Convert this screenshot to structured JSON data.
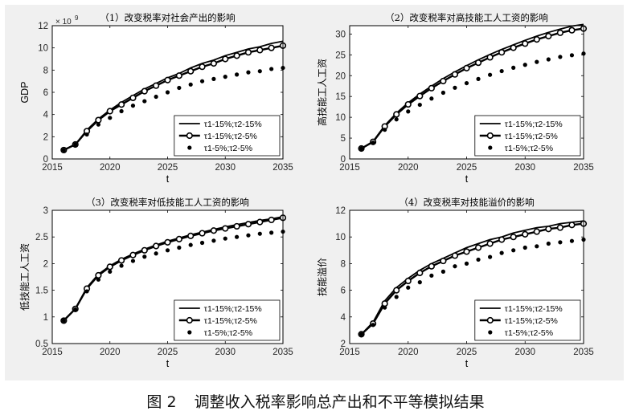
{
  "figure": {
    "caption_number": "图 2",
    "caption_text": "调整收入税率影响总产出和不平等模拟结果",
    "colors": {
      "panel_bg": "#f0f0f0",
      "axes_bg": "#ffffff",
      "ink": "#000000",
      "tick_text": "#262626"
    }
  },
  "legend_labels": [
    "τ1-15%;τ2-15%",
    "τ1-15%;τ2-5%",
    "τ1-5%;τ2-5%"
  ],
  "chart_data": [
    {
      "type": "line",
      "title": "（1）改变税率对社会产出的影响",
      "xlabel": "t",
      "ylabel": "GDP",
      "exponent_label": "× 10",
      "exponent_power": "9",
      "xlim": [
        2015,
        2035
      ],
      "ylim": [
        0,
        12
      ],
      "xticks": [
        "2015",
        "2020",
        "2025",
        "2030",
        "2035"
      ],
      "yticks": [
        "0",
        "2",
        "4",
        "6",
        "8",
        "10",
        "12"
      ],
      "x": [
        2016,
        2017,
        2018,
        2019,
        2020,
        2021,
        2022,
        2023,
        2024,
        2025,
        2026,
        2027,
        2028,
        2029,
        2030,
        2031,
        2032,
        2033,
        2034,
        2035
      ],
      "series": [
        {
          "name": "τ1-15%;τ2-15%",
          "style": "solid",
          "values": [
            0.8,
            1.3,
            2.6,
            3.6,
            4.4,
            5.1,
            5.7,
            6.3,
            6.8,
            7.3,
            7.7,
            8.2,
            8.6,
            8.9,
            9.3,
            9.6,
            9.9,
            10.1,
            10.4,
            10.6
          ]
        },
        {
          "name": "τ1-15%;τ2-5%",
          "style": "circle-line",
          "values": [
            0.8,
            1.3,
            2.5,
            3.5,
            4.3,
            4.9,
            5.5,
            6.1,
            6.6,
            7.1,
            7.5,
            7.9,
            8.3,
            8.6,
            9.0,
            9.3,
            9.6,
            9.8,
            10.0,
            10.2
          ]
        },
        {
          "name": "τ1-5%;τ2-5%",
          "style": "dots",
          "values": [
            0.8,
            1.3,
            2.2,
            3.1,
            3.7,
            4.3,
            4.8,
            5.2,
            5.6,
            6.0,
            6.4,
            6.7,
            7.0,
            7.2,
            7.4,
            7.6,
            7.8,
            7.9,
            8.1,
            8.2
          ]
        }
      ]
    },
    {
      "type": "line",
      "title": "（2）改变税率对高技能工人工资的影响",
      "xlabel": "t",
      "ylabel": "高技能工人工资",
      "xlim": [
        2015,
        2035
      ],
      "ylim": [
        0,
        32
      ],
      "xticks": [
        "2015",
        "2020",
        "2025",
        "2030",
        "2035"
      ],
      "yticks": [
        "0",
        "5",
        "10",
        "15",
        "20",
        "25",
        "30"
      ],
      "x": [
        2016,
        2017,
        2018,
        2019,
        2020,
        2021,
        2022,
        2023,
        2024,
        2025,
        2026,
        2027,
        2028,
        2029,
        2030,
        2031,
        2032,
        2033,
        2034,
        2035
      ],
      "series": [
        {
          "name": "τ1-15%;τ2-15%",
          "style": "solid",
          "values": [
            2.5,
            4.2,
            8.0,
            11.0,
            13.5,
            15.6,
            17.5,
            19.3,
            20.9,
            22.4,
            23.8,
            25.1,
            26.3,
            27.4,
            28.5,
            29.5,
            30.4,
            31.2,
            31.9,
            32.3
          ]
        },
        {
          "name": "τ1-15%;τ2-5%",
          "style": "circle-line",
          "values": [
            2.5,
            4.1,
            7.8,
            10.7,
            13.1,
            15.1,
            17.0,
            18.7,
            20.3,
            21.8,
            23.1,
            24.4,
            25.6,
            26.7,
            27.7,
            28.7,
            29.5,
            30.3,
            30.9,
            31.3
          ]
        },
        {
          "name": "τ1-5%;τ2-5%",
          "style": "dots",
          "values": [
            2.5,
            3.9,
            7.0,
            9.5,
            11.4,
            13.0,
            14.5,
            15.9,
            17.1,
            18.2,
            19.2,
            20.2,
            21.1,
            21.9,
            22.6,
            23.3,
            23.9,
            24.5,
            24.9,
            25.3
          ]
        }
      ]
    },
    {
      "type": "line",
      "title": "（3）改变税率对低技能工人工资的影响",
      "xlabel": "t",
      "ylabel": "低技能工人工资",
      "xlim": [
        2015,
        2035
      ],
      "ylim": [
        0.5,
        3
      ],
      "xticks": [
        "2015",
        "2020",
        "2025",
        "2030",
        "2035"
      ],
      "yticks": [
        "0.5",
        "1",
        "1.5",
        "2",
        "2.5",
        "3"
      ],
      "x": [
        2016,
        2017,
        2018,
        2019,
        2020,
        2021,
        2022,
        2023,
        2024,
        2025,
        2026,
        2027,
        2028,
        2029,
        2030,
        2031,
        2032,
        2033,
        2034,
        2035
      ],
      "series": [
        {
          "name": "τ1-15%;τ2-15%",
          "style": "solid",
          "values": [
            0.93,
            1.15,
            1.55,
            1.8,
            1.96,
            2.08,
            2.18,
            2.27,
            2.35,
            2.42,
            2.48,
            2.54,
            2.59,
            2.64,
            2.69,
            2.73,
            2.77,
            2.81,
            2.84,
            2.88
          ]
        },
        {
          "name": "τ1-15%;τ2-5%",
          "style": "circle-line",
          "values": [
            0.93,
            1.15,
            1.53,
            1.78,
            1.94,
            2.06,
            2.16,
            2.25,
            2.33,
            2.4,
            2.46,
            2.52,
            2.57,
            2.62,
            2.66,
            2.7,
            2.74,
            2.78,
            2.82,
            2.86
          ]
        },
        {
          "name": "τ1-5%;τ2-5%",
          "style": "dots",
          "values": [
            0.93,
            1.14,
            1.48,
            1.7,
            1.85,
            1.96,
            2.05,
            2.13,
            2.19,
            2.25,
            2.3,
            2.35,
            2.39,
            2.43,
            2.47,
            2.5,
            2.53,
            2.56,
            2.58,
            2.6
          ]
        }
      ]
    },
    {
      "type": "line",
      "title": "（4）改变税率对技能溢价的影响",
      "xlabel": "t",
      "ylabel": "技能溢价",
      "xlim": [
        2015,
        2035
      ],
      "ylim": [
        2,
        12
      ],
      "xticks": [
        "2015",
        "2020",
        "2025",
        "2030",
        "2035"
      ],
      "yticks": [
        "2",
        "4",
        "6",
        "8",
        "10",
        "12"
      ],
      "x": [
        2016,
        2017,
        2018,
        2019,
        2020,
        2021,
        2022,
        2023,
        2024,
        2025,
        2026,
        2027,
        2028,
        2029,
        2030,
        2031,
        2032,
        2033,
        2034,
        2035
      ],
      "series": [
        {
          "name": "τ1-15%;τ2-15%",
          "style": "solid",
          "values": [
            2.7,
            3.6,
            5.2,
            6.2,
            6.9,
            7.5,
            8.0,
            8.4,
            8.8,
            9.2,
            9.5,
            9.8,
            10.0,
            10.3,
            10.5,
            10.7,
            10.8,
            11.0,
            11.1,
            11.2
          ]
        },
        {
          "name": "τ1-15%;τ2-5%",
          "style": "circle-line",
          "values": [
            2.7,
            3.5,
            5.0,
            6.0,
            6.7,
            7.3,
            7.8,
            8.2,
            8.6,
            8.9,
            9.2,
            9.5,
            9.8,
            10.0,
            10.2,
            10.4,
            10.6,
            10.7,
            10.9,
            11.0
          ]
        },
        {
          "name": "τ1-5%;τ2-5%",
          "style": "dots",
          "values": [
            2.7,
            3.4,
            4.7,
            5.5,
            6.2,
            6.6,
            7.1,
            7.4,
            7.8,
            8.0,
            8.3,
            8.5,
            8.8,
            9.0,
            9.2,
            9.3,
            9.5,
            9.6,
            9.7,
            9.8
          ]
        }
      ]
    }
  ]
}
